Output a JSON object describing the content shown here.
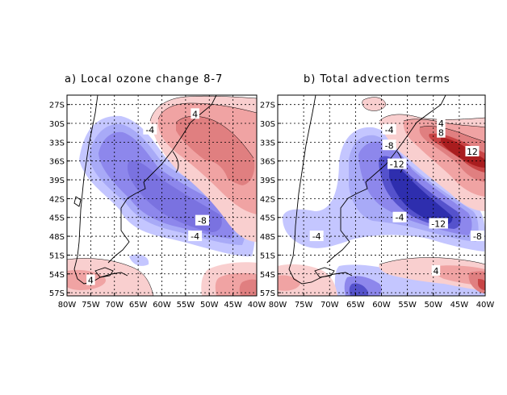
{
  "panels": [
    {
      "id": "a",
      "title": "a) Local ozone change 8-7",
      "lat_ticks": [
        "27S",
        "30S",
        "33S",
        "36S",
        "39S",
        "42S",
        "45S",
        "48S",
        "51S",
        "54S",
        "57S"
      ],
      "lon_ticks": [
        "80W",
        "75W",
        "70W",
        "65W",
        "60W",
        "55W",
        "50W",
        "45W",
        "40W"
      ],
      "contour_labels": [
        {
          "text": "-4",
          "lon": -62.5,
          "lat": -31.0
        },
        {
          "text": "-4",
          "lon": -53.0,
          "lat": -48.0
        },
        {
          "text": "-8",
          "lon": -51.5,
          "lat": -45.5
        },
        {
          "text": "4",
          "lon": -53.0,
          "lat": -28.5
        },
        {
          "text": "4",
          "lon": -75.0,
          "lat": -55.0
        }
      ]
    },
    {
      "id": "b",
      "title": "b) Total advection terms",
      "lat_ticks": [
        "27S",
        "30S",
        "33S",
        "36S",
        "39S",
        "42S",
        "45S",
        "48S",
        "51S",
        "54S",
        "57S"
      ],
      "lon_ticks": [
        "80W",
        "75W",
        "70W",
        "65W",
        "60W",
        "55W",
        "50W",
        "45W",
        "40W"
      ],
      "contour_labels": [
        {
          "text": "-4",
          "lon": -58.5,
          "lat": -31.0
        },
        {
          "text": "-8",
          "lon": -58.5,
          "lat": -33.5
        },
        {
          "text": "-12",
          "lon": -57.0,
          "lat": -36.5
        },
        {
          "text": "-4",
          "lon": -56.5,
          "lat": -45.0
        },
        {
          "text": "-12",
          "lon": -49.0,
          "lat": -46.0
        },
        {
          "text": "-8",
          "lon": -41.5,
          "lat": -48.0
        },
        {
          "text": "-4",
          "lon": -72.5,
          "lat": -48.0
        },
        {
          "text": "4",
          "lon": -48.5,
          "lat": -30.0
        },
        {
          "text": "8",
          "lon": -48.5,
          "lat": -31.5
        },
        {
          "text": "12",
          "lon": -42.5,
          "lat": -34.5
        },
        {
          "text": "4",
          "lon": -49.5,
          "lat": -53.5
        }
      ]
    }
  ],
  "chart_data": {
    "type": "contour-map",
    "contour_interval": 2,
    "colors": {
      "neg_light": "#c4c6ff",
      "neg_mid": "#a8aaf7",
      "neg_dark": "#8d87ec",
      "neg_deep": "#5552cc",
      "neg_deepest": "#2e2eae",
      "pos_light": "#f9cfcf",
      "pos_mid": "#f0a3a3",
      "pos_dark": "#e07f80",
      "pos_deep": "#c84445",
      "pos_deepest": "#a91d1f"
    }
  }
}
